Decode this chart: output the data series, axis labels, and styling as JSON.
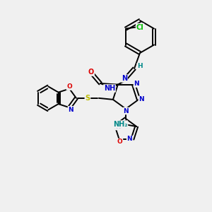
{
  "bg_color": "#f0f0f0",
  "atom_colors": {
    "C": "#000000",
    "N": "#0000cc",
    "O": "#dd0000",
    "S": "#bbbb00",
    "Cl": "#00bb00",
    "H": "#008888"
  },
  "figsize": [
    3.0,
    3.0
  ],
  "dpi": 100
}
